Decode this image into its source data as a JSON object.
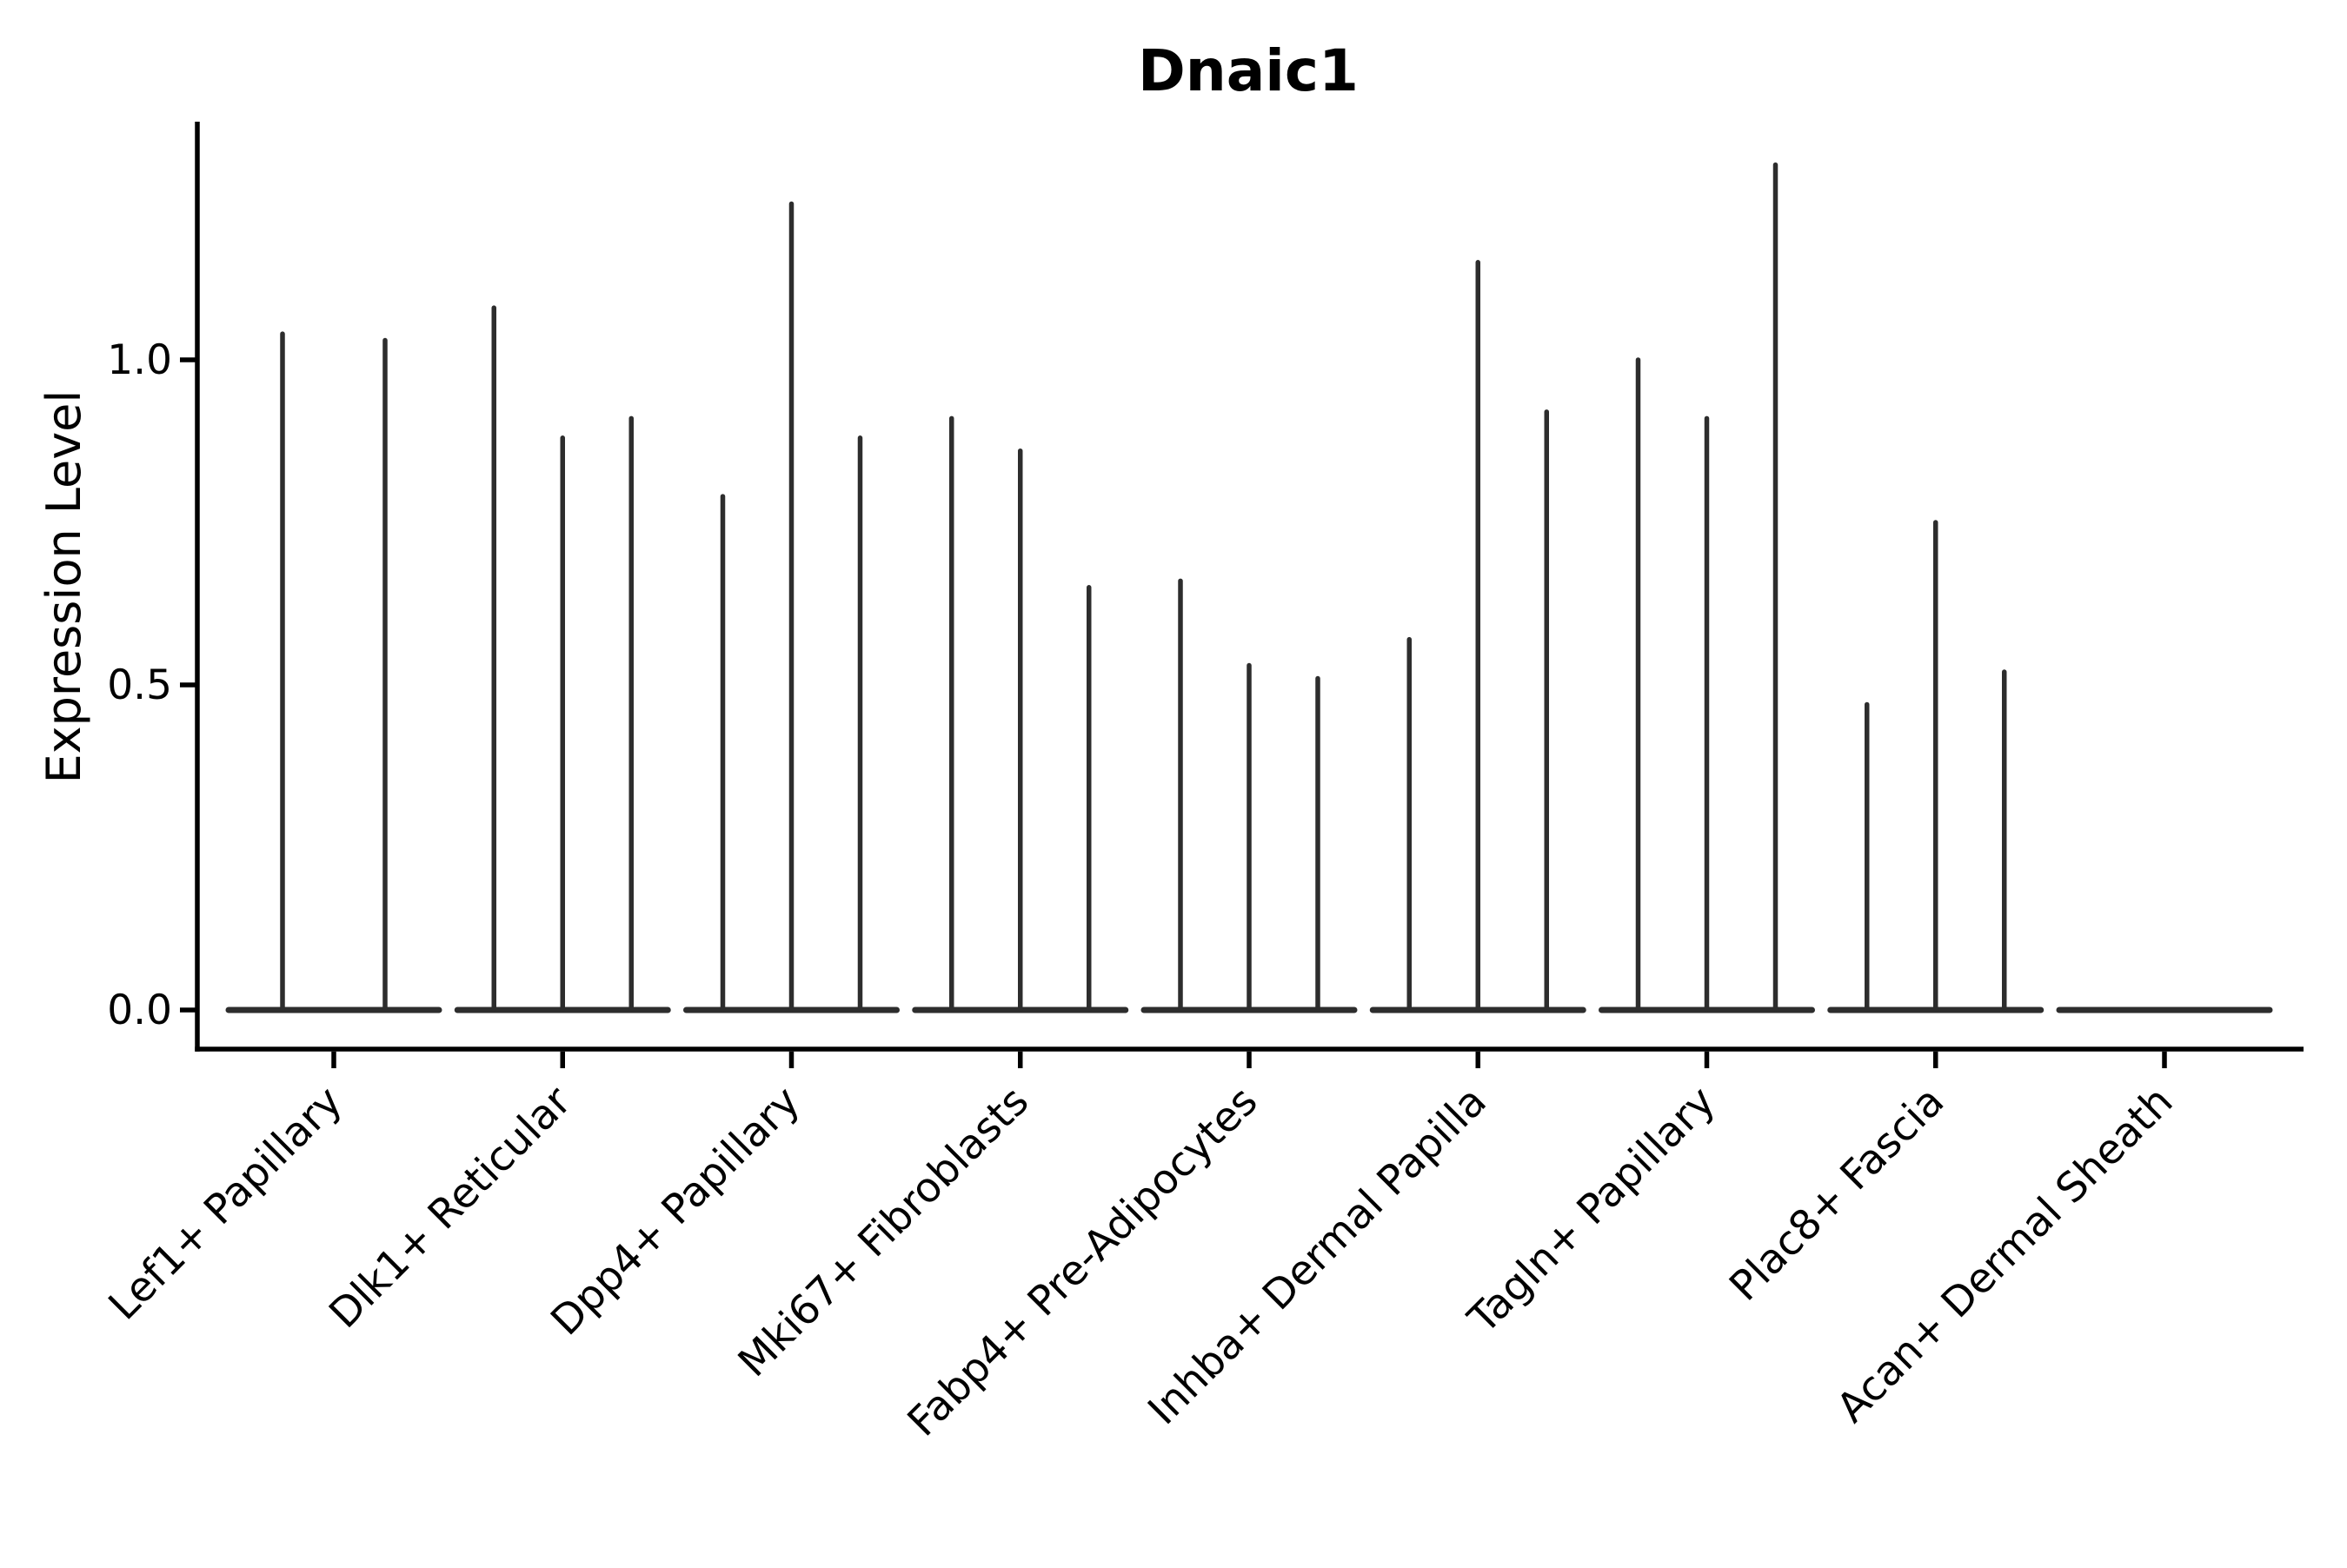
{
  "chart_data": {
    "type": "violin",
    "title": "Dnaic1",
    "xlabel": "",
    "ylabel": "Expression Level",
    "yticks": {
      "values": [
        0.0,
        0.5,
        1.0
      ],
      "labels": [
        "0.0",
        "0.5",
        "1.0"
      ]
    },
    "ylim": [
      -0.06,
      1.37
    ],
    "grid": false,
    "legend": "none",
    "style": "thin violins: flat base at 0 with narrow density spike to max expression",
    "categories": [
      "Lef1+ Papillary",
      "Dlk1+ Reticular",
      "Dpp4+ Papillary",
      "Mki67+ Fibroblasts",
      "Fabp4+ Pre-Adipocytes",
      "Inhba+ Dermal Papilla",
      "Tagln+ Papillary",
      "Plac8+ Fascia",
      "Acan+ Dermal Sheath"
    ],
    "groups": [
      {
        "label": "Lef1+ Papillary",
        "violin_max_values": [
          1.04,
          1.03
        ]
      },
      {
        "label": "Dlk1+ Reticular",
        "violin_max_values": [
          1.08,
          0.88,
          0.91
        ]
      },
      {
        "label": "Dpp4+ Papillary",
        "violin_max_values": [
          0.79,
          1.24,
          0.88
        ]
      },
      {
        "label": "Mki67+ Fibroblasts",
        "violin_max_values": [
          0.91,
          0.86,
          0.65
        ]
      },
      {
        "label": "Fabp4+ Pre-Adipocytes",
        "violin_max_values": [
          0.66,
          0.53,
          0.51
        ]
      },
      {
        "label": "Inhba+ Dermal Papilla",
        "violin_max_values": [
          0.57,
          1.15,
          0.92
        ]
      },
      {
        "label": "Tagln+ Papillary",
        "violin_max_values": [
          1.0,
          0.91,
          1.3
        ]
      },
      {
        "label": "Plac8+ Fascia",
        "violin_max_values": [
          0.47,
          0.75,
          0.52
        ]
      },
      {
        "label": "Acan+ Dermal Sheath",
        "violin_max_values": [
          0.0,
          0.0,
          0.0
        ]
      }
    ],
    "colors": {
      "background": "#ffffff",
      "axis": "#000000",
      "text": "#000000",
      "violin": "#2d2d2d"
    }
  }
}
